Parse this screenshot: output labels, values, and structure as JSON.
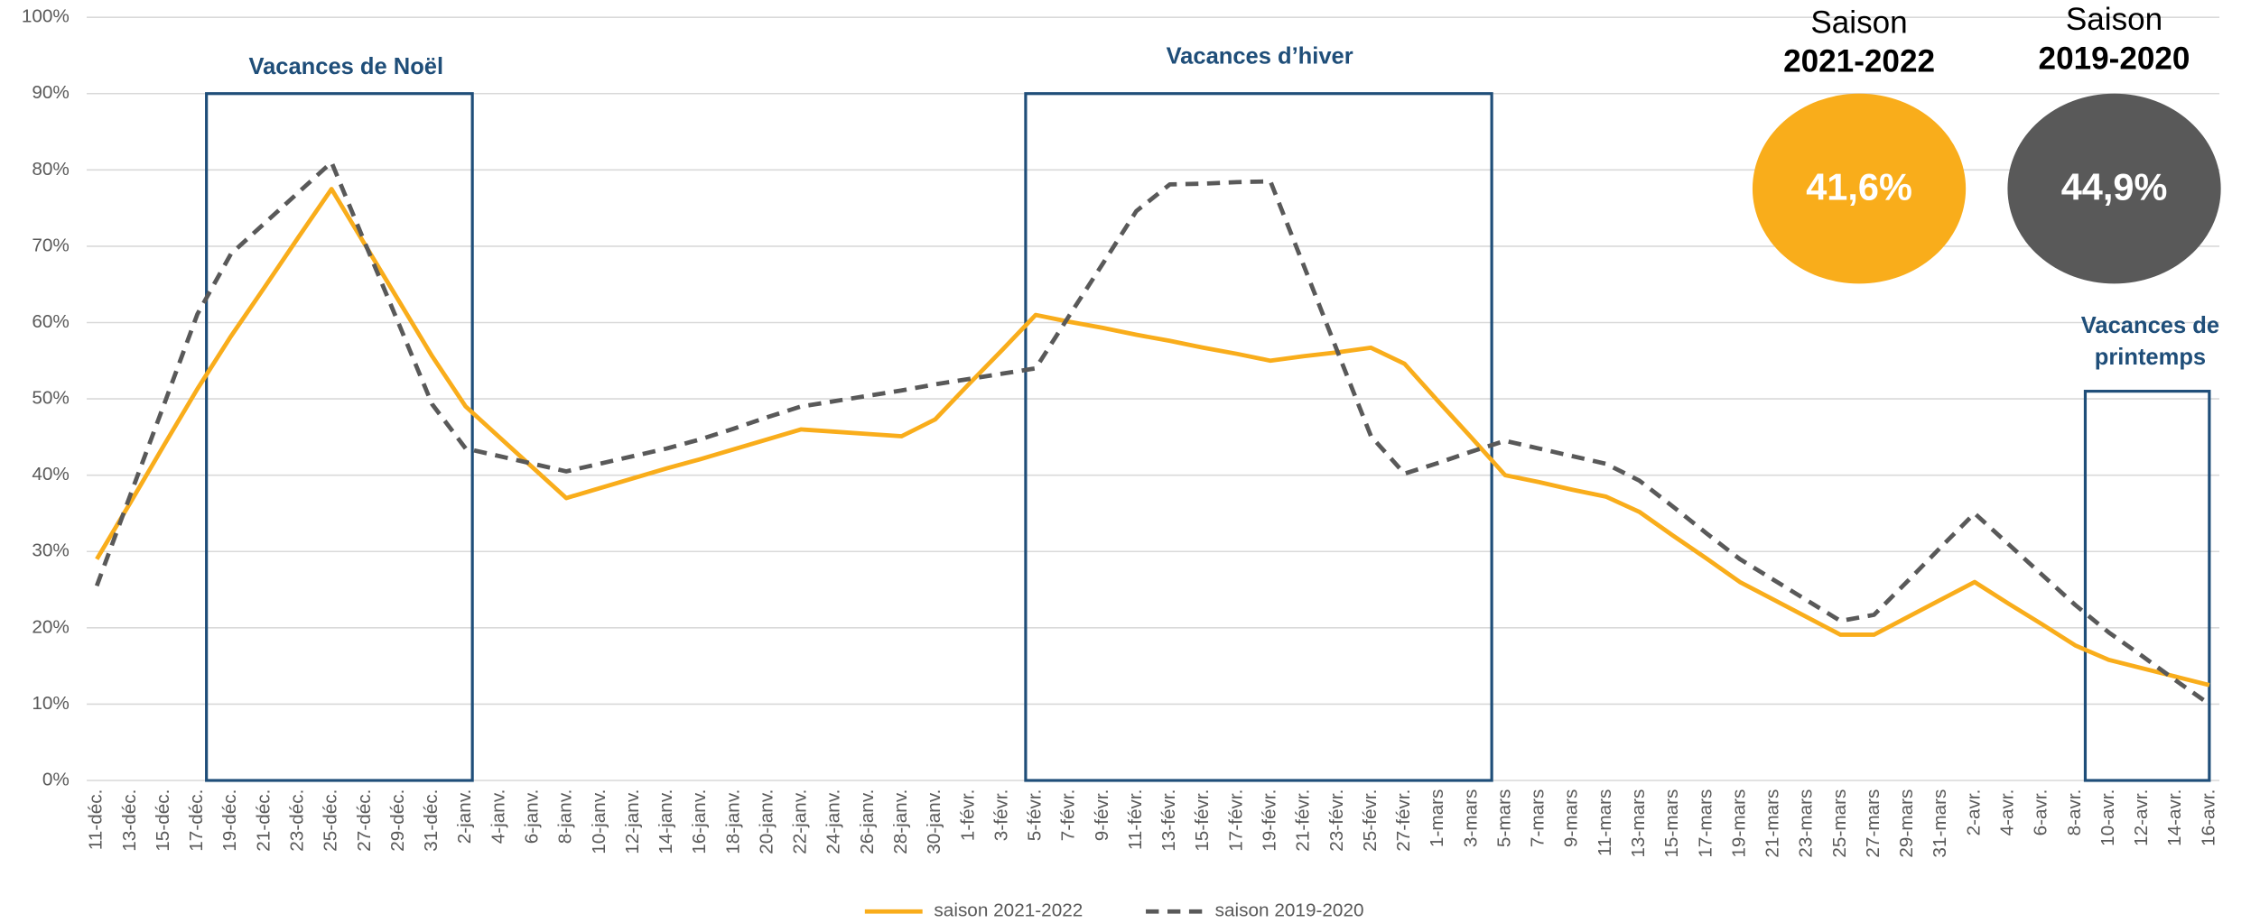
{
  "chart_data": {
    "type": "line",
    "categories": [
      "11-déc.",
      "13-déc.",
      "15-déc.",
      "17-déc.",
      "19-déc.",
      "21-déc.",
      "23-déc.",
      "25-déc.",
      "27-déc.",
      "29-déc.",
      "31-déc.",
      "2-janv.",
      "4-janv.",
      "6-janv.",
      "8-janv.",
      "10-janv.",
      "12-janv.",
      "14-janv.",
      "16-janv.",
      "18-janv.",
      "20-janv.",
      "22-janv.",
      "24-janv.",
      "26-janv.",
      "28-janv.",
      "30-janv.",
      "1-févr.",
      "3-févr.",
      "5-févr.",
      "7-févr.",
      "9-févr.",
      "11-févr.",
      "13-févr.",
      "15-févr.",
      "17-févr.",
      "19-févr.",
      "21-févr.",
      "23-févr.",
      "25-févr.",
      "27-févr.",
      "1-mars",
      "3-mars",
      "5-mars",
      "7-mars",
      "9-mars",
      "11-mars",
      "13-mars",
      "15-mars",
      "17-mars",
      "19-mars",
      "21-mars",
      "23-mars",
      "25-mars",
      "27-mars",
      "29-mars",
      "31-mars",
      "2-avr.",
      "4-avr.",
      "6-avr.",
      "8-avr.",
      "10-avr.",
      "12-avr.",
      "14-avr.",
      "16-avr."
    ],
    "series": [
      {
        "name": "saison 2021-2022",
        "color": "#f9ad1b",
        "dashed": false,
        "values": [
          29,
          36.4,
          43.9,
          51.3,
          58.2,
          64.6,
          71.1,
          77.5,
          70.2,
          62.9,
          55.6,
          49,
          45,
          41,
          37,
          38.3,
          39.6,
          40.9,
          42.1,
          43.4,
          44.7,
          46,
          45.7,
          45.4,
          45.1,
          47.3,
          51.9,
          56.4,
          61,
          60.1,
          59.3,
          58.4,
          57.6,
          56.7,
          55.9,
          55,
          55.6,
          56.1,
          56.7,
          54.6,
          49.7,
          44.9,
          40,
          39.1,
          38.1,
          37.2,
          35.2,
          32.1,
          29.1,
          26,
          23.7,
          21.4,
          19.1,
          19.1,
          21.4,
          23.7,
          26,
          23.2,
          20.5,
          17.7,
          15.8,
          14.7,
          13.6,
          12.5
        ]
      },
      {
        "name": "saison 2019-2020",
        "color": "#595959",
        "dashed": true,
        "values": [
          25.5,
          37.4,
          49.2,
          61.1,
          69,
          73,
          77,
          81,
          70.4,
          59.9,
          49.3,
          43.5,
          42.5,
          41.5,
          40.5,
          41.5,
          42.5,
          43.5,
          44.7,
          46.1,
          47.6,
          49,
          49.7,
          50.4,
          51.1,
          51.9,
          52.6,
          53.3,
          54,
          60.9,
          67.7,
          74.6,
          78.1,
          78.2,
          78.4,
          78.5,
          67.4,
          56.2,
          45.1,
          40.2,
          41.6,
          43.1,
          44.5,
          43.5,
          42.5,
          41.5,
          39.3,
          35.9,
          32.4,
          29,
          26.3,
          23.6,
          20.9,
          21.7,
          26.1,
          30.6,
          35,
          31,
          27,
          23,
          19.4,
          16.3,
          13.1,
          10
        ]
      }
    ],
    "ylim": [
      0,
      100
    ],
    "yticks": [
      {
        "value": 0,
        "label": "0%"
      },
      {
        "value": 10,
        "label": "10%"
      },
      {
        "value": 20,
        "label": "20%"
      },
      {
        "value": 30,
        "label": "30%"
      },
      {
        "value": 40,
        "label": "40%"
      },
      {
        "value": 50,
        "label": "50%"
      },
      {
        "value": 60,
        "label": "60%"
      },
      {
        "value": 70,
        "label": "70%"
      },
      {
        "value": 80,
        "label": "80%"
      },
      {
        "value": 90,
        "label": "90%"
      },
      {
        "value": 100,
        "label": "100%"
      }
    ],
    "grid": true,
    "legend": "bottom",
    "periods": [
      {
        "lines": [
          "Vacances de Noël"
        ]
      },
      {
        "lines": [
          "Vacances d’hiver"
        ]
      },
      {
        "lines": [
          "Vacances de",
          "printemps"
        ]
      }
    ],
    "summary": [
      {
        "label": "Saison",
        "season": "2021-2022",
        "value": 41.6,
        "value_label": "41,6%",
        "color": "#f9ad1b"
      },
      {
        "label": "Saison",
        "season": "2019-2020",
        "value": 44.9,
        "value_label": "44,9%",
        "color": "#595959"
      }
    ]
  }
}
